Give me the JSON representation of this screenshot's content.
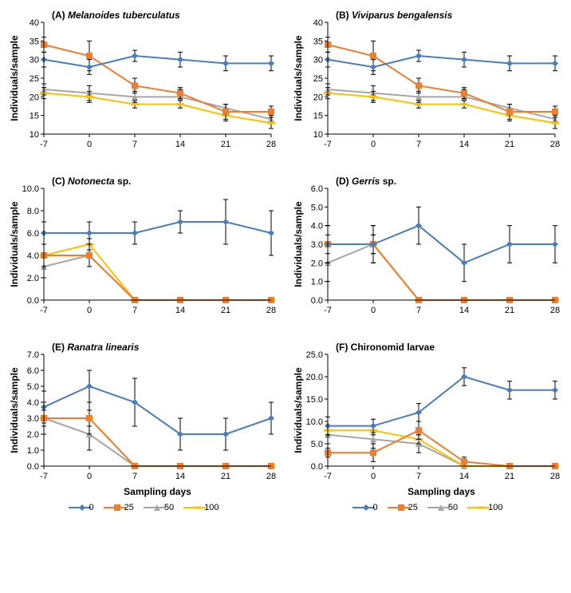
{
  "x_values": [
    -7,
    0,
    7,
    14,
    21,
    28
  ],
  "x_label": "Sampling days",
  "y_label": "Individuals/sample",
  "colors": {
    "s0": "#4a7ebb",
    "s25": "#ed7d31",
    "s50": "#a6a6a6",
    "s100": "#ffc000",
    "axis": "#000000"
  },
  "markers": {
    "s0": "diamond",
    "s25": "square",
    "s50": "triangle",
    "s100": "line"
  },
  "legend": [
    {
      "key": "s0",
      "label": "0"
    },
    {
      "key": "s25",
      "label": "25"
    },
    {
      "key": "s50",
      "label": "50"
    },
    {
      "key": "s100",
      "label": "100"
    }
  ],
  "panels": [
    {
      "id": "A",
      "title_prefix": "(A) ",
      "title_italic": "Melanoides tuberculatus",
      "ymin": 10,
      "ymax": 40,
      "ystep": 5,
      "series": {
        "s0": [
          {
            "y": 30,
            "e": 2
          },
          {
            "y": 28,
            "e": 2
          },
          {
            "y": 31,
            "e": 1.5
          },
          {
            "y": 30,
            "e": 2
          },
          {
            "y": 29,
            "e": 2
          },
          {
            "y": 29,
            "e": 2
          }
        ],
        "s25": [
          {
            "y": 34,
            "e": 2
          },
          {
            "y": 31,
            "e": 4
          },
          {
            "y": 23,
            "e": 2
          },
          {
            "y": 21,
            "e": 1.5
          },
          {
            "y": 16,
            "e": 2
          },
          {
            "y": 16,
            "e": 1.5
          }
        ],
        "s50": [
          {
            "y": 22,
            "e": 1.5
          },
          {
            "y": 21,
            "e": 2
          },
          {
            "y": 20,
            "e": 1.5
          },
          {
            "y": 20,
            "e": 2
          },
          {
            "y": 17,
            "e": 1
          },
          {
            "y": 14,
            "e": 1
          }
        ],
        "s100": [
          {
            "y": 21,
            "e": 1.5
          },
          {
            "y": 20,
            "e": 1.5
          },
          {
            "y": 18,
            "e": 1
          },
          {
            "y": 18,
            "e": 1
          },
          {
            "y": 15,
            "e": 1.5
          },
          {
            "y": 13,
            "e": 1.5
          }
        ]
      }
    },
    {
      "id": "B",
      "title_prefix": "(B) ",
      "title_italic": "Viviparus bengalensis",
      "ymin": 10,
      "ymax": 40,
      "ystep": 5,
      "series": {
        "s0": [
          {
            "y": 30,
            "e": 2
          },
          {
            "y": 28,
            "e": 2
          },
          {
            "y": 31,
            "e": 1.5
          },
          {
            "y": 30,
            "e": 2
          },
          {
            "y": 29,
            "e": 2
          },
          {
            "y": 29,
            "e": 2
          }
        ],
        "s25": [
          {
            "y": 34,
            "e": 2
          },
          {
            "y": 31,
            "e": 4
          },
          {
            "y": 23,
            "e": 2
          },
          {
            "y": 21,
            "e": 1.5
          },
          {
            "y": 16,
            "e": 2
          },
          {
            "y": 16,
            "e": 1.5
          }
        ],
        "s50": [
          {
            "y": 22,
            "e": 1.5
          },
          {
            "y": 21,
            "e": 2
          },
          {
            "y": 20,
            "e": 1.5
          },
          {
            "y": 20,
            "e": 2
          },
          {
            "y": 17,
            "e": 1
          },
          {
            "y": 14,
            "e": 1
          }
        ],
        "s100": [
          {
            "y": 21,
            "e": 1.5
          },
          {
            "y": 20,
            "e": 1.5
          },
          {
            "y": 18,
            "e": 1
          },
          {
            "y": 18,
            "e": 1
          },
          {
            "y": 15,
            "e": 1.5
          },
          {
            "y": 13,
            "e": 1.5
          }
        ]
      }
    },
    {
      "id": "C",
      "title_prefix": "(C) ",
      "title_italic": "Notonecta ",
      "title_suffix": "sp.",
      "ymin": 0,
      "ymax": 10,
      "ystep": 2,
      "ydec": 1,
      "series": {
        "s0": [
          {
            "y": 6,
            "e": 1
          },
          {
            "y": 6,
            "e": 1
          },
          {
            "y": 6,
            "e": 1
          },
          {
            "y": 7,
            "e": 1
          },
          {
            "y": 7,
            "e": 2
          },
          {
            "y": 6,
            "e": 2
          }
        ],
        "s25": [
          {
            "y": 4,
            "e": 1
          },
          {
            "y": 4,
            "e": 1
          },
          {
            "y": 0,
            "e": 0
          },
          {
            "y": 0,
            "e": 0
          },
          {
            "y": 0,
            "e": 0
          },
          {
            "y": 0,
            "e": 0
          }
        ],
        "s50": [
          {
            "y": 3,
            "e": 1
          },
          {
            "y": 4,
            "e": 1
          },
          {
            "y": 0,
            "e": 0
          },
          {
            "y": 0,
            "e": 0
          },
          {
            "y": 0,
            "e": 0
          },
          {
            "y": 0,
            "e": 0
          }
        ],
        "s100": [
          {
            "y": 4,
            "e": 1
          },
          {
            "y": 5,
            "e": 0.5
          },
          {
            "y": 0,
            "e": 0
          },
          {
            "y": 0,
            "e": 0
          },
          {
            "y": 0,
            "e": 0
          },
          {
            "y": 0,
            "e": 0
          }
        ]
      }
    },
    {
      "id": "D",
      "title_prefix": "(D) ",
      "title_italic": "Gerris ",
      "title_suffix": "sp.",
      "ymin": 0,
      "ymax": 6,
      "ystep": 1,
      "ydec": 1,
      "series": {
        "s0": [
          {
            "y": 3,
            "e": 1
          },
          {
            "y": 3,
            "e": 0.5
          },
          {
            "y": 4,
            "e": 1
          },
          {
            "y": 2,
            "e": 1
          },
          {
            "y": 3,
            "e": 1
          },
          {
            "y": 3,
            "e": 1
          }
        ],
        "s25": [
          {
            "y": 3,
            "e": 1
          },
          {
            "y": 3,
            "e": 1
          },
          {
            "y": 0,
            "e": 0
          },
          {
            "y": 0,
            "e": 0
          },
          {
            "y": 0,
            "e": 0
          },
          {
            "y": 0,
            "e": 0
          }
        ],
        "s50": [
          {
            "y": 2,
            "e": 1
          },
          {
            "y": 3,
            "e": 1
          },
          {
            "y": 0,
            "e": 0
          },
          {
            "y": 0,
            "e": 0
          },
          {
            "y": 0,
            "e": 0
          },
          {
            "y": 0,
            "e": 0
          }
        ],
        "s100": [
          {
            "y": 3,
            "e": 0.5
          },
          {
            "y": 3,
            "e": 0.5
          },
          {
            "y": 0,
            "e": 0
          },
          {
            "y": 0,
            "e": 0
          },
          {
            "y": 0,
            "e": 0
          },
          {
            "y": 0,
            "e": 0
          }
        ]
      }
    },
    {
      "id": "E",
      "title_prefix": "(E) ",
      "title_italic": "Ranatra linearis",
      "ymin": 0,
      "ymax": 7,
      "ystep": 1,
      "ydec": 1,
      "series": {
        "s0": [
          {
            "y": 3.7,
            "e": 1
          },
          {
            "y": 5,
            "e": 1
          },
          {
            "y": 4,
            "e": 1.5
          },
          {
            "y": 2,
            "e": 1
          },
          {
            "y": 2,
            "e": 1
          },
          {
            "y": 3,
            "e": 1
          }
        ],
        "s25": [
          {
            "y": 3,
            "e": 1
          },
          {
            "y": 3,
            "e": 1
          },
          {
            "y": 0,
            "e": 0
          },
          {
            "y": 0,
            "e": 0
          },
          {
            "y": 0,
            "e": 0
          },
          {
            "y": 0,
            "e": 0
          }
        ],
        "s50": [
          {
            "y": 3,
            "e": 1
          },
          {
            "y": 2,
            "e": 1
          },
          {
            "y": 0,
            "e": 0
          },
          {
            "y": 0,
            "e": 0
          },
          {
            "y": 0,
            "e": 0
          },
          {
            "y": 0,
            "e": 0
          }
        ],
        "s100": [
          {
            "y": 3,
            "e": 0.5
          },
          {
            "y": 3,
            "e": 0.5
          },
          {
            "y": 0,
            "e": 0
          },
          {
            "y": 0,
            "e": 0
          },
          {
            "y": 0,
            "e": 0
          },
          {
            "y": 0,
            "e": 0
          }
        ]
      }
    },
    {
      "id": "F",
      "title_prefix": "(F) ",
      "title_italic": "",
      "title_plain": "Chironomid larvae",
      "ymin": 0,
      "ymax": 25,
      "ystep": 5,
      "ydec": 1,
      "series": {
        "s0": [
          {
            "y": 9,
            "e": 2
          },
          {
            "y": 9,
            "e": 1.5
          },
          {
            "y": 12,
            "e": 2
          },
          {
            "y": 20,
            "e": 2
          },
          {
            "y": 17,
            "e": 2
          },
          {
            "y": 17,
            "e": 2
          }
        ],
        "s25": [
          {
            "y": 3,
            "e": 1
          },
          {
            "y": 3,
            "e": 2
          },
          {
            "y": 8,
            "e": 2
          },
          {
            "y": 1,
            "e": 1
          },
          {
            "y": 0,
            "e": 0
          },
          {
            "y": 0,
            "e": 0
          }
        ],
        "s50": [
          {
            "y": 7,
            "e": 2
          },
          {
            "y": 6,
            "e": 2
          },
          {
            "y": 5,
            "e": 2
          },
          {
            "y": 0,
            "e": 0
          },
          {
            "y": 0,
            "e": 0
          },
          {
            "y": 0,
            "e": 0
          }
        ],
        "s100": [
          {
            "y": 8,
            "e": 1
          },
          {
            "y": 8,
            "e": 1
          },
          {
            "y": 6,
            "e": 1
          },
          {
            "y": 0,
            "e": 0
          },
          {
            "y": 0,
            "e": 0
          },
          {
            "y": 0,
            "e": 0
          }
        ]
      }
    }
  ]
}
